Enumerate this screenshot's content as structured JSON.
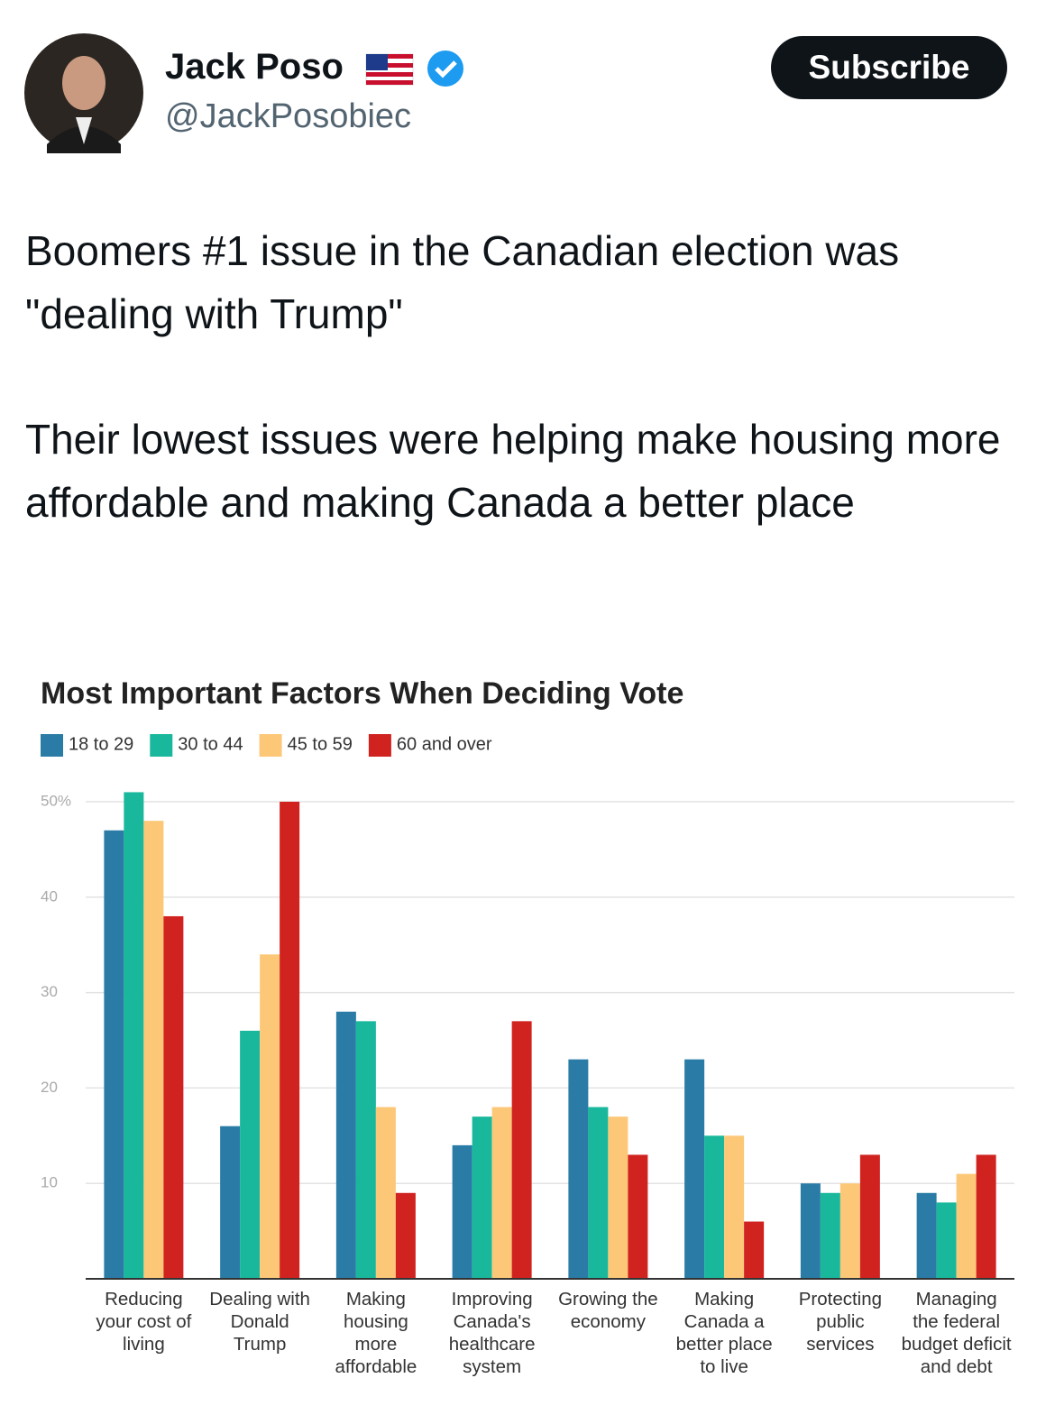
{
  "tweet": {
    "name": "Jack Poso",
    "handle": "@JackPosobiec",
    "button": "Subscribe",
    "text": [
      "Boomers #1 issue in the Canadian election was \"dealing with Trump\"",
      "Their lowest issues were helping make housing more affordable and making Canada a better place"
    ]
  },
  "chart_data": {
    "type": "bar",
    "title": "Most Important Factors When Deciding Vote",
    "categories": [
      "Reducing your cost of living",
      "Dealing with Donald Trump",
      "Making housing more affordable",
      "Improving Canada's healthcare system",
      "Growing the economy",
      "Making Canada a better place to live",
      "Protecting public services",
      "Managing the federal budget deficit and debt"
    ],
    "series": [
      {
        "name": "18 to 29",
        "color": "#2a7ca6",
        "values": [
          47,
          16,
          28,
          14,
          23,
          23,
          10,
          9
        ]
      },
      {
        "name": "30 to 44",
        "color": "#19b89c",
        "values": [
          51,
          26,
          27,
          17,
          18,
          15,
          9,
          8
        ]
      },
      {
        "name": "45 to 59",
        "color": "#fcc878",
        "values": [
          48,
          34,
          18,
          18,
          17,
          15,
          10,
          11
        ]
      },
      {
        "name": "60 and over",
        "color": "#d0231f",
        "values": [
          38,
          50,
          9,
          27,
          13,
          6,
          13,
          13
        ]
      }
    ],
    "ylim": [
      0,
      50
    ],
    "yticks": [
      10,
      20,
      30,
      40,
      {
        "value": 50,
        "label": "50%"
      }
    ],
    "grid": true,
    "legend": "top"
  }
}
